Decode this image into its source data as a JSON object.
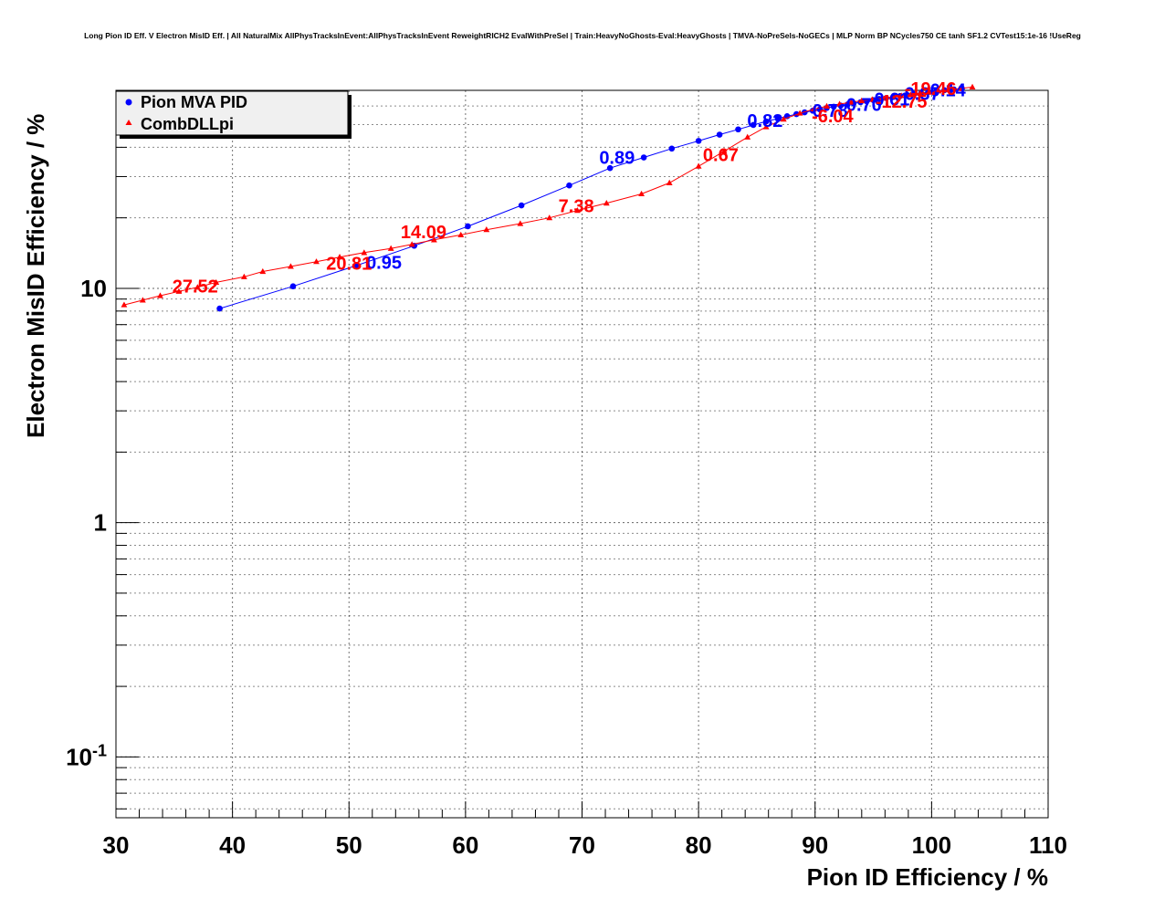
{
  "chart_data": {
    "type": "scatter",
    "title": "Long Pion ID Eff. V Electron MisID Eff. | All NaturalMix AllPhysTracksInEvent:AllPhysTracksInEvent ReweightRICH2 EvalWithPreSel | Train:HeavyNoGhosts-Eval:HeavyGhosts | TMVA-NoPreSels-NoGECs | MLP Norm BP NCycles750 CE tanh SF1.2 CVTest15:1e-16 !UseReg",
    "xlabel": "Pion ID Efficiency / %",
    "ylabel": "Electron MisID Efficiency / %",
    "xlim": [
      30,
      110
    ],
    "ylim": [
      0.055,
      70
    ],
    "yscale": "log",
    "grid": true,
    "legend_position": "top-left",
    "x_ticks": [
      "30",
      "40",
      "50",
      "60",
      "70",
      "80",
      "90",
      "100",
      "110"
    ],
    "y_ticks": [
      {
        "value": 0.1,
        "base": "10",
        "exp": "-1"
      },
      {
        "value": 1,
        "base": "1",
        "exp": ""
      },
      {
        "value": 10,
        "base": "10",
        "exp": ""
      }
    ],
    "series": [
      {
        "name": "Pion MVA PID",
        "color": "#0000ff",
        "marker": "circle",
        "x": [
          38.9,
          45.2,
          50.6,
          55.6,
          60.2,
          64.8,
          68.9,
          72.4,
          75.3,
          77.7,
          80.0,
          81.8,
          83.4,
          84.7,
          85.8,
          86.8,
          87.6,
          88.4,
          89.1,
          89.8,
          90.4,
          91.0,
          91.6,
          92.2,
          92.8,
          93.3,
          93.9,
          94.4,
          95.0,
          95.5,
          96.1,
          96.7,
          97.3,
          97.9,
          98.5,
          99.1,
          99.7,
          100.4,
          101.1,
          101.9,
          102.6
        ],
        "y": [
          8.2,
          10.2,
          12.5,
          15.2,
          18.4,
          22.6,
          27.5,
          32.6,
          36.2,
          39.5,
          42.6,
          45.3,
          47.7,
          49.8,
          51.6,
          53.0,
          54.3,
          55.4,
          56.4,
          57.3,
          58.1,
          58.9,
          59.6,
          60.3,
          61.0,
          61.6,
          62.3,
          63.0,
          63.6,
          64.3,
          64.9,
          65.6,
          66.2,
          66.9,
          67.5,
          68.1,
          68.8,
          69.5,
          70.1,
          70.7,
          71.3
        ],
        "labels": [
          {
            "text": "0.95",
            "x": 53.0,
            "y": 13.0
          },
          {
            "text": "0.89",
            "x": 73.0,
            "y": 36.5
          },
          {
            "text": "0.82",
            "x": 85.7,
            "y": 52.5
          },
          {
            "text": "0.78",
            "x": 91.3,
            "y": 58.0
          },
          {
            "text": "0.70",
            "x": 94.2,
            "y": 61.5
          },
          {
            "text": "0.61",
            "x": 96.6,
            "y": 65.0
          },
          {
            "text": "0.37",
            "x": 99.2,
            "y": 68.5
          },
          {
            "text": "0.14",
            "x": 101.4,
            "y": 71.0
          }
        ]
      },
      {
        "name": "CombDLLpi",
        "color": "#ff0000",
        "marker": "triangle",
        "x": [
          30.7,
          32.3,
          33.8,
          35.4,
          37.0,
          38.6,
          41.0,
          42.6,
          45.0,
          47.2,
          49.2,
          51.3,
          53.6,
          55.4,
          57.3,
          59.6,
          61.8,
          64.7,
          67.2,
          69.6,
          72.1,
          75.1,
          77.5,
          80.0,
          82.2,
          84.2,
          85.8,
          87.3,
          88.7,
          89.9,
          91.0,
          92.1,
          93.1,
          94.0,
          94.9,
          95.8,
          96.6,
          97.4,
          98.2,
          99.0,
          99.8,
          100.6,
          101.5,
          102.4,
          103.5
        ],
        "y": [
          8.5,
          8.9,
          9.3,
          9.7,
          10.1,
          10.6,
          11.2,
          11.8,
          12.4,
          13.0,
          13.6,
          14.2,
          14.8,
          15.4,
          16.1,
          16.9,
          17.8,
          18.9,
          20.0,
          21.5,
          23.1,
          25.3,
          28.2,
          33.2,
          38.5,
          44.2,
          48.9,
          52.7,
          55.9,
          58.2,
          59.9,
          61.2,
          62.3,
          63.2,
          64.0,
          64.8,
          65.6,
          66.4,
          67.1,
          67.9,
          68.7,
          69.5,
          70.3,
          71.2,
          72.3
        ],
        "labels": [
          {
            "text": "27.52",
            "x": 36.8,
            "y": 10.3
          },
          {
            "text": "20.81",
            "x": 50.0,
            "y": 12.9
          },
          {
            "text": "14.09",
            "x": 56.4,
            "y": 17.6
          },
          {
            "text": "7.38",
            "x": 69.5,
            "y": 22.7
          },
          {
            "text": "0.67",
            "x": 81.9,
            "y": 37.5
          },
          {
            "text": "-6.04",
            "x": 91.5,
            "y": 55.0
          },
          {
            "text": "-12.75",
            "x": 97.4,
            "y": 63.5
          },
          {
            "text": "-19.46",
            "x": 99.9,
            "y": 72.0
          }
        ]
      }
    ]
  }
}
